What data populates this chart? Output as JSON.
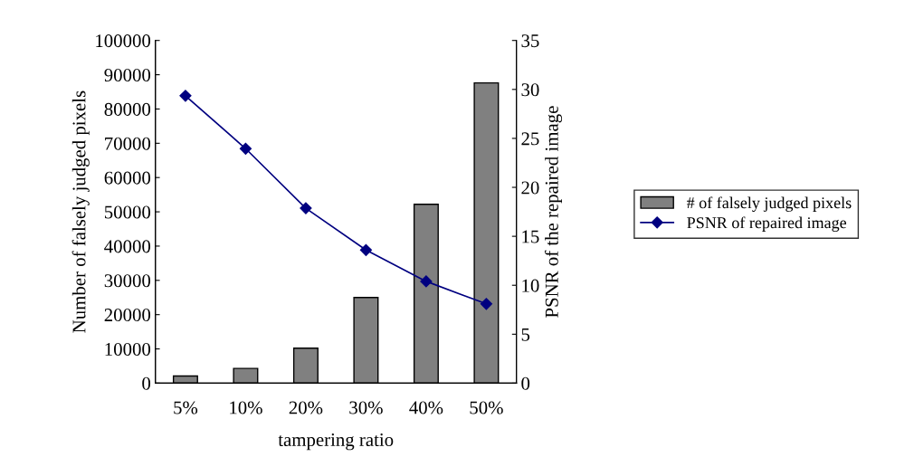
{
  "chart_data": {
    "type": "bar",
    "xlabel": "tampering ratio",
    "ylabel": "Number of falsely judged pixels",
    "y2label": "PSNR of the repaired image",
    "categories": [
      "5%",
      "10%",
      "20%",
      "30%",
      "40%",
      "50%"
    ],
    "series": [
      {
        "name": "# of falsely judged pixels",
        "color": "#808080",
        "values": [
          2100,
          4300,
          10200,
          25000,
          52200,
          87600
        ]
      },
      {
        "name": "PSNR of repaired image",
        "type": "line",
        "axis": "y2",
        "color": "#000080",
        "values": [
          29.35,
          23.95,
          17.87,
          13.6,
          10.4,
          8.1
        ]
      }
    ],
    "ylim": [
      0,
      100000
    ],
    "yticks": [
      0,
      10000,
      20000,
      30000,
      40000,
      50000,
      60000,
      70000,
      80000,
      90000,
      100000
    ],
    "y2lim": [
      0,
      35
    ],
    "y2ticks": [
      0,
      5,
      10,
      15,
      20,
      25,
      30,
      35
    ],
    "legend": "right",
    "marker": "diamond",
    "grid": false
  }
}
